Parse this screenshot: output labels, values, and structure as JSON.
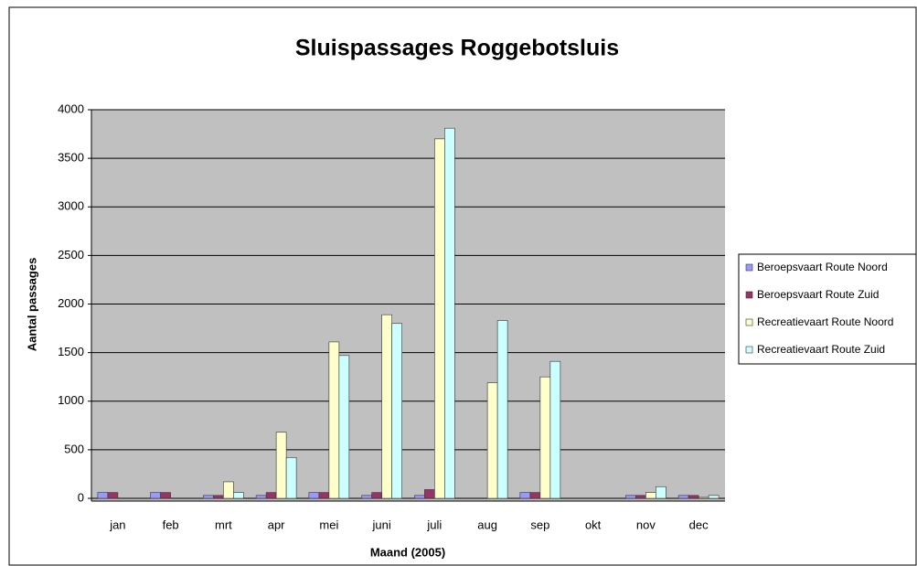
{
  "chart_data": {
    "type": "bar",
    "title": "Sluispassages Roggebotsluis",
    "x_label": "Maand (2005)",
    "y_label": "Aantal passages",
    "categories": [
      "jan",
      "feb",
      "mrt",
      "apr",
      "mei",
      "juni",
      "juli",
      "aug",
      "sep",
      "okt",
      "nov",
      "dec"
    ],
    "series": [
      {
        "name": "Beroepsvaart Route Noord",
        "color": "#9999ff",
        "values": [
          60,
          60,
          30,
          30,
          60,
          30,
          30,
          0,
          60,
          0,
          30,
          30
        ]
      },
      {
        "name": "Beroepsvaart Route Zuid",
        "color": "#993366",
        "values": [
          60,
          60,
          30,
          60,
          60,
          60,
          90,
          0,
          60,
          0,
          30,
          30
        ]
      },
      {
        "name": "Recreatievaart Route Noord",
        "color": "#ffffcc",
        "values": [
          0,
          0,
          170,
          680,
          1610,
          1890,
          3700,
          1190,
          1250,
          0,
          60,
          10
        ]
      },
      {
        "name": "Recreatievaart Route Zuid",
        "color": "#ccffff",
        "values": [
          0,
          0,
          60,
          420,
          1470,
          1800,
          3810,
          1830,
          1410,
          0,
          120,
          30
        ]
      }
    ],
    "ylim": [
      0,
      4000
    ],
    "yticks": [
      0,
      500,
      1000,
      1500,
      2000,
      2500,
      3000,
      3500,
      4000
    ],
    "grid": true,
    "legend": "right"
  }
}
